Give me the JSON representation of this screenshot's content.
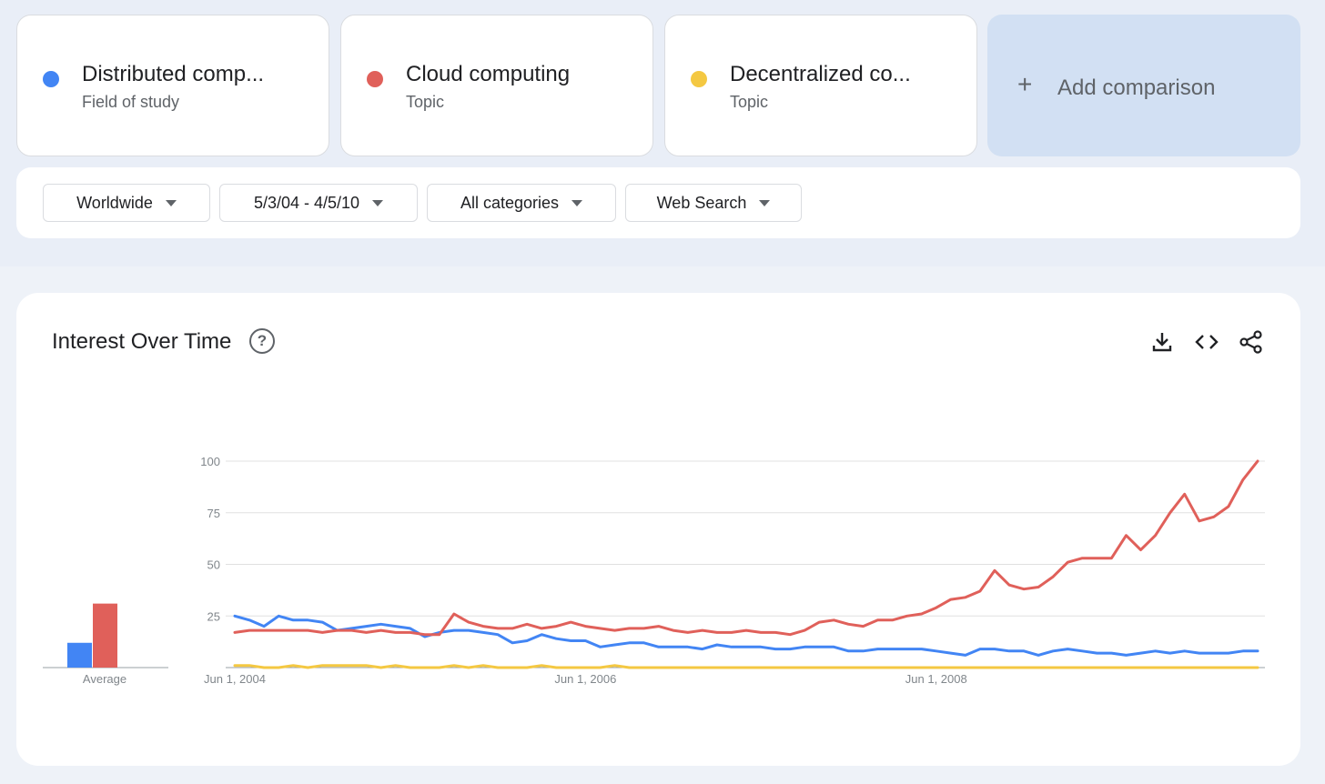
{
  "terms": [
    {
      "name": "Distributed comp...",
      "type": "Field of study",
      "color": "#4285f4"
    },
    {
      "name": "Cloud computing",
      "type": "Topic",
      "color": "#e0605a"
    },
    {
      "name": "Decentralized co...",
      "type": "Topic",
      "color": "#f4c842"
    }
  ],
  "add_comparison": {
    "label": "Add comparison",
    "icon": "plus-icon"
  },
  "filters": {
    "region": "Worldwide",
    "date_range": "5/3/04 - 4/5/10",
    "category": "All categories",
    "search_type": "Web Search"
  },
  "chart_card": {
    "title": "Interest Over Time",
    "icons": [
      "help-icon",
      "download-icon",
      "embed-code-icon",
      "share-icon"
    ]
  },
  "chart_data": {
    "type": "line",
    "average_label": "Average",
    "averages": [
      12,
      31,
      0
    ],
    "ylim": [
      0,
      100
    ],
    "y_ticks": [
      100,
      75,
      50,
      25
    ],
    "x_tick_labels": [
      "Jun 1, 2004",
      "Jun 1, 2006",
      "Jun 1, 2008"
    ],
    "x_tick_months": [
      0,
      24,
      48
    ],
    "x_month_range": [
      0,
      70
    ],
    "series": [
      {
        "name": "Distributed comp...",
        "color": "#4285f4",
        "month": [
          0,
          1,
          2,
          3,
          4,
          5,
          6,
          7,
          8,
          9,
          10,
          11,
          12,
          13,
          14,
          15,
          16,
          17,
          18,
          19,
          20,
          21,
          22,
          23,
          24,
          25,
          26,
          27,
          28,
          29,
          30,
          31,
          32,
          33,
          34,
          35,
          36,
          37,
          38,
          39,
          40,
          41,
          42,
          43,
          44,
          45,
          46,
          47,
          48,
          49,
          50,
          51,
          52,
          53,
          54,
          55,
          56,
          57,
          58,
          59,
          60,
          61,
          62,
          63,
          64,
          65,
          66,
          67,
          68,
          69,
          70
        ],
        "values": [
          25,
          23,
          20,
          25,
          23,
          23,
          22,
          18,
          19,
          20,
          21,
          20,
          19,
          15,
          17,
          18,
          18,
          17,
          16,
          12,
          13,
          16,
          14,
          13,
          13,
          10,
          11,
          12,
          12,
          10,
          10,
          10,
          9,
          11,
          10,
          10,
          10,
          9,
          9,
          10,
          10,
          10,
          8,
          8,
          9,
          9,
          9,
          9,
          8,
          7,
          6,
          9,
          9,
          8,
          8,
          6,
          8,
          9,
          8,
          7,
          7,
          6,
          7,
          8,
          7,
          8,
          7,
          7,
          7,
          8,
          8
        ]
      },
      {
        "name": "Cloud computing",
        "color": "#e0605a",
        "month": [
          0,
          1,
          2,
          3,
          4,
          5,
          6,
          7,
          8,
          9,
          10,
          11,
          12,
          13,
          14,
          15,
          16,
          17,
          18,
          19,
          20,
          21,
          22,
          23,
          24,
          25,
          26,
          27,
          28,
          29,
          30,
          31,
          32,
          33,
          34,
          35,
          36,
          37,
          38,
          39,
          40,
          41,
          42,
          43,
          44,
          45,
          46,
          47,
          48,
          49,
          50,
          51,
          52,
          53,
          54,
          55,
          56,
          57,
          58,
          59,
          60,
          61,
          62,
          63,
          64,
          65,
          66,
          67,
          68,
          69,
          70
        ],
        "values": [
          17,
          18,
          18,
          18,
          18,
          18,
          17,
          18,
          18,
          17,
          18,
          17,
          17,
          16,
          16,
          26,
          22,
          20,
          19,
          19,
          21,
          19,
          20,
          22,
          20,
          19,
          18,
          19,
          19,
          20,
          18,
          17,
          18,
          17,
          17,
          18,
          17,
          17,
          16,
          18,
          22,
          23,
          21,
          20,
          23,
          23,
          25,
          26,
          29,
          33,
          34,
          37,
          47,
          40,
          38,
          39,
          44,
          51,
          53,
          53,
          53,
          64,
          57,
          64,
          75,
          84,
          71,
          73,
          78,
          91,
          100
        ]
      },
      {
        "name": "Decentralized co...",
        "color": "#f4c842",
        "month": [
          0,
          1,
          2,
          3,
          4,
          5,
          6,
          7,
          8,
          9,
          10,
          11,
          12,
          13,
          14,
          15,
          16,
          17,
          18,
          19,
          20,
          21,
          22,
          23,
          24,
          25,
          26,
          27,
          28,
          29,
          30,
          31,
          32,
          33,
          34,
          35,
          36,
          37,
          38,
          39,
          40,
          41,
          42,
          43,
          44,
          45,
          46,
          47,
          48,
          49,
          50,
          51,
          52,
          53,
          54,
          55,
          56,
          57,
          58,
          59,
          60,
          61,
          62,
          63,
          64,
          65,
          66,
          67,
          68,
          69,
          70
        ],
        "values": [
          1,
          1,
          0,
          0,
          1,
          0,
          1,
          1,
          1,
          1,
          0,
          1,
          0,
          0,
          0,
          1,
          0,
          1,
          0,
          0,
          0,
          1,
          0,
          0,
          0,
          0,
          1,
          0,
          0,
          0,
          0,
          0,
          0,
          0,
          0,
          0,
          0,
          0,
          0,
          0,
          0,
          0,
          0,
          0,
          0,
          0,
          0,
          0,
          0,
          0,
          0,
          0,
          0,
          0,
          0,
          0,
          0,
          0,
          0,
          0,
          0,
          0,
          0,
          0,
          0,
          0,
          0,
          0,
          0,
          0,
          0
        ]
      }
    ]
  }
}
